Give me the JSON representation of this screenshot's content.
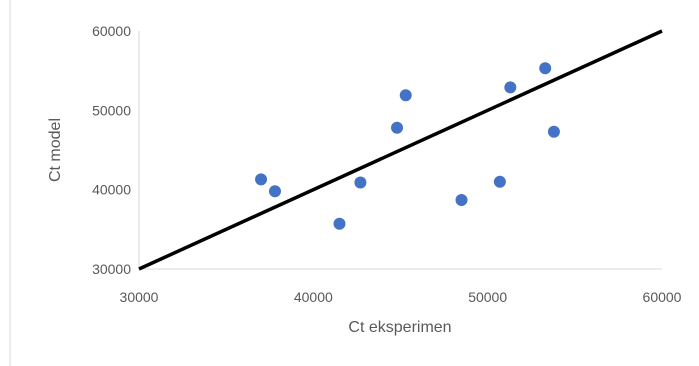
{
  "chart_data": {
    "type": "scatter",
    "title": "",
    "xlabel": "Ct eksperimen",
    "ylabel": "Ct model",
    "xlim": [
      30000,
      60000
    ],
    "ylim": [
      30000,
      60000
    ],
    "xticks": [
      "30000",
      "40000",
      "50000",
      "60000"
    ],
    "yticks": [
      "30000",
      "40000",
      "50000",
      "60000"
    ],
    "grid": false,
    "legend": "none",
    "colors": {
      "points": "#4472C4",
      "line": "#000000",
      "axis": "#D9D9D9",
      "text": "#595959"
    },
    "series": [
      {
        "values": [
          {
            "x": 37000,
            "y": 41300
          },
          {
            "x": 37800,
            "y": 39800
          },
          {
            "x": 41500,
            "y": 35700
          },
          {
            "x": 42700,
            "y": 40900
          },
          {
            "x": 44800,
            "y": 47800
          },
          {
            "x": 45300,
            "y": 51900
          },
          {
            "x": 48500,
            "y": 38700
          },
          {
            "x": 50700,
            "y": 41000
          },
          {
            "x": 51300,
            "y": 52900
          },
          {
            "x": 53300,
            "y": 55300
          },
          {
            "x": 53800,
            "y": 47300
          }
        ]
      }
    ],
    "reference_line": {
      "from": {
        "x": 30000,
        "y": 30000
      },
      "to": {
        "x": 60000,
        "y": 60000
      }
    }
  }
}
